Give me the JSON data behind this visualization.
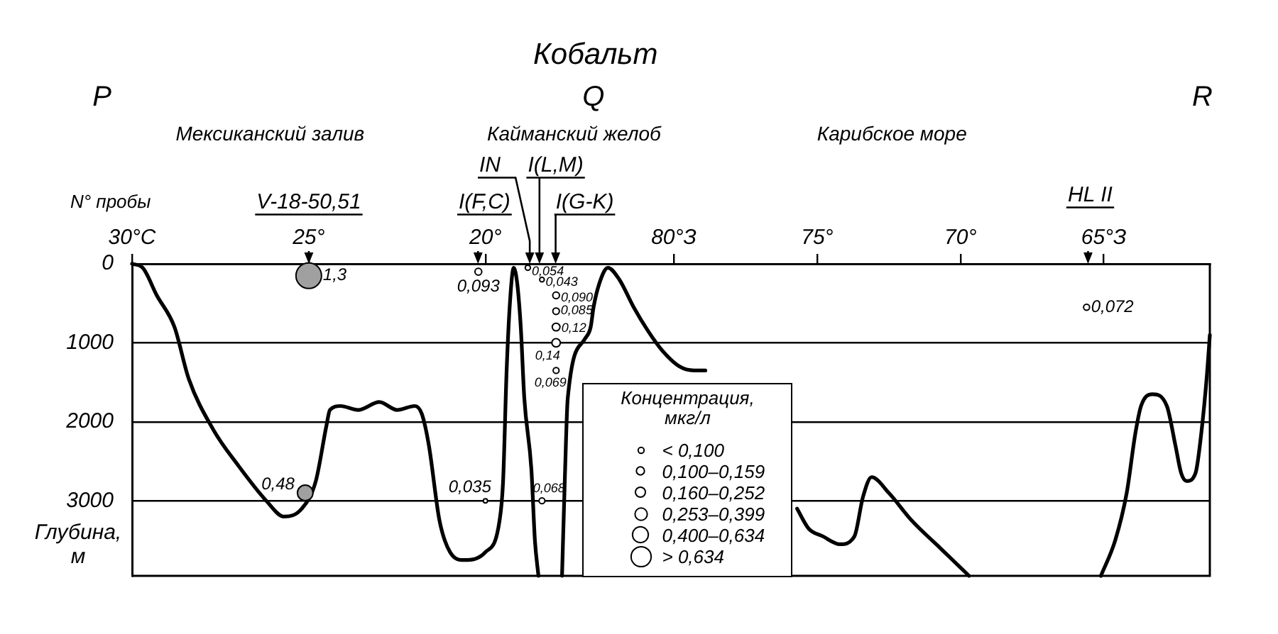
{
  "chart_data": {
    "type": "line",
    "title": "Кобальт",
    "ylabel": "Глубина, м",
    "legend_title": "Концентрация, мкг/л",
    "annotations": [
      "P",
      "Q",
      "R",
      "Мексиканский залив",
      "Кайманский желоб",
      "Карибское море",
      "N° пробы",
      "V-18-50,51",
      "IN",
      "I(F,C)",
      "I(L,M)",
      "I(G-K)",
      "HL II"
    ],
    "xlim": [
      30,
      -0.5
    ],
    "xticks": [
      {
        "value": 30,
        "label": "30°С"
      },
      {
        "value": 25,
        "label": "25°"
      },
      {
        "value": 20,
        "label": "20°"
      }
    ],
    "x2lim": [
      98.9,
      61.3
    ],
    "x2ticks": [
      {
        "value": 80,
        "label": "80°З"
      },
      {
        "value": 75,
        "label": "75°"
      },
      {
        "value": 70,
        "label": "70°"
      },
      {
        "value": 65,
        "label": "65°З"
      }
    ],
    "ylim": [
      3950,
      0
    ],
    "yticks": [
      0,
      1000,
      2000,
      3000
    ],
    "grid": "y",
    "size_legend": [
      {
        "value": 0.07,
        "label": "< 0,100"
      },
      {
        "value": 0.13,
        "label": "0,100–0,159"
      },
      {
        "value": 0.2,
        "label": "0,160–0,252"
      },
      {
        "value": 0.3,
        "label": "0,253–0,399"
      },
      {
        "value": 0.5,
        "label": "0,400–0,634"
      },
      {
        "value": 0.8,
        "label": "> 0,634"
      }
    ],
    "series": [
      {
        "color": "#000000",
        "x": [
          30.0,
          29.7,
          29.3,
          28.8,
          28.4,
          27.7,
          27.0,
          26.2,
          25.7,
          25.2,
          24.8,
          24.5,
          24.4,
          24.1,
          23.6,
          23.0,
          22.5,
          22.0,
          21.8,
          21.6,
          21.3,
          21.0,
          20.6,
          20.0,
          19.6,
          19.5,
          19.4,
          19.3,
          19.2,
          19.1,
          19.0,
          18.9,
          18.7,
          18.6,
          18.5
        ],
        "values": [
          0,
          50,
          400,
          800,
          1450,
          2100,
          2550,
          3000,
          3200,
          3100,
          2750,
          2050,
          1850,
          1800,
          1850,
          1750,
          1850,
          1800,
          1900,
          2300,
          3250,
          3650,
          3750,
          3650,
          3250,
          2750,
          1350,
          450,
          50,
          250,
          800,
          1700,
          2600,
          3500,
          3950
        ]
      },
      {
        "color": "#000000",
        "axis": "x2",
        "x": [
          83.9,
          83.8,
          83.7,
          83.1,
          82.9,
          82.8,
          82.6,
          82.3,
          81.9,
          81.4,
          80.9,
          80.4,
          79.8,
          79.3,
          78.9,
          77.0,
          75.7,
          75.3,
          74.8,
          74.2,
          73.7,
          73.4,
          73.1,
          72.5,
          71.7,
          70.7,
          69.7,
          67.0,
          65.1,
          64.6,
          64.2,
          63.9,
          63.7,
          63.3,
          62.8,
          62.5,
          62.3,
          62.1,
          61.8,
          61.6,
          61.4,
          61.3
        ],
        "values": [
          3950,
          2700,
          1700,
          950,
          800,
          550,
          250,
          50,
          200,
          550,
          850,
          1100,
          1300,
          1350,
          1350,
          null,
          3100,
          3350,
          3450,
          3550,
          3450,
          2950,
          2700,
          2900,
          3250,
          3600,
          3950,
          null,
          3950,
          3500,
          2900,
          2150,
          1800,
          1650,
          1800,
          2300,
          2650,
          2750,
          2650,
          2150,
          1400,
          900
        ]
      },
      {
        "type": "bubble",
        "x": [
          25.0,
          25.1,
          20.2,
          20.0,
          18.8,
          18.4,
          18.0,
          18.0,
          18.0,
          18.0,
          18.0,
          18.4
        ],
        "values": [
          150,
          2900,
          100,
          3000,
          50,
          200,
          400,
          600,
          800,
          1000,
          1350,
          3000
        ],
        "sizes": [
          1.3,
          0.48,
          0.093,
          0.035,
          0.054,
          0.043,
          0.09,
          0.085,
          0.12,
          0.14,
          0.069,
          0.068
        ],
        "colors": [
          "#a0a0a0",
          "#a0a0a0",
          "#ffffff",
          "#ffffff",
          "#ffffff",
          "#ffffff",
          "#ffffff",
          "#ffffff",
          "#ffffff",
          "#ffffff",
          "#ffffff",
          "#ffffff"
        ],
        "value_labels": [
          "1,3",
          "0,48",
          "0,093",
          "0,035",
          "0,054",
          "0,043",
          "0,090",
          "0,085",
          "0,12",
          "0,14",
          "0,069",
          "0,068"
        ]
      },
      {
        "type": "bubble",
        "axis": "x2",
        "x": [
          65.6
        ],
        "values": [
          550
        ],
        "sizes": [
          0.072
        ],
        "colors": [
          "#ffffff"
        ],
        "value_labels": [
          "0,072"
        ]
      }
    ]
  }
}
